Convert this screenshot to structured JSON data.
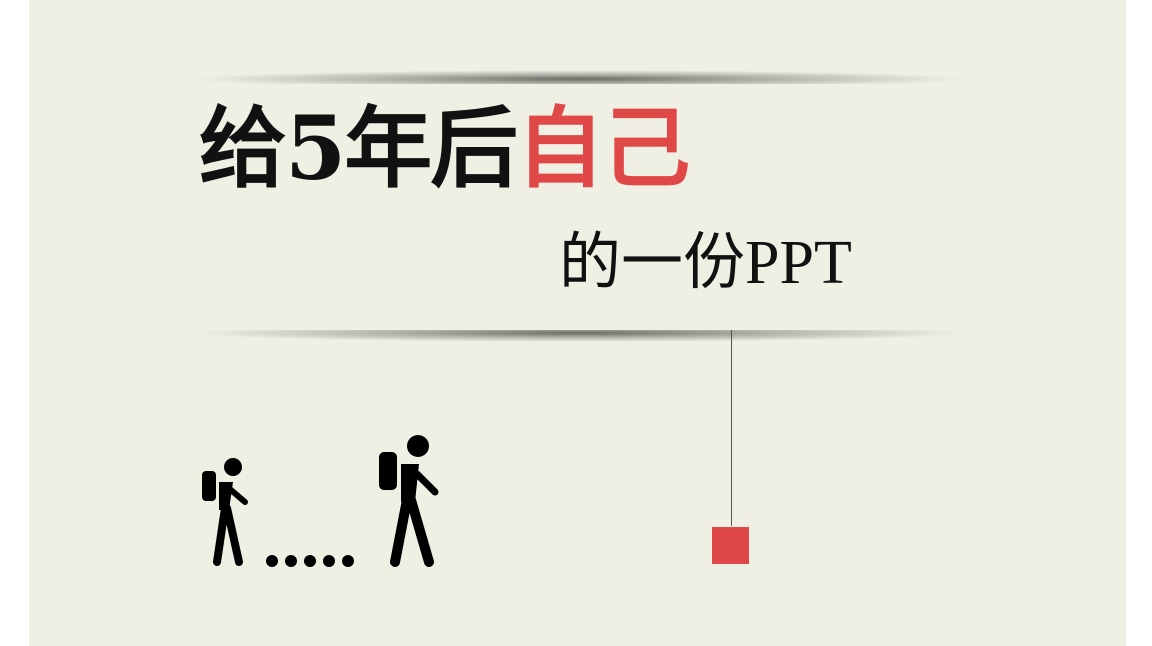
{
  "slide": {
    "title_main": "给5年后",
    "title_accent": "自己",
    "subtitle": "的一份PPT"
  },
  "icons": {
    "small_hiker": "hiker-icon",
    "large_hiker": "hiker-icon",
    "trail": "dotted-trail-icon",
    "marker": "red-square-marker"
  },
  "colors": {
    "background": "#f0efe4",
    "accent": "#e04848",
    "text": "#111111"
  }
}
